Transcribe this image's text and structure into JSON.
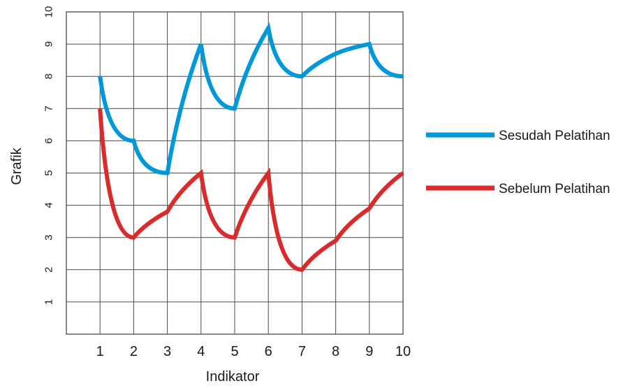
{
  "chart_data": {
    "type": "line",
    "title": "",
    "xlabel": "Indikator",
    "ylabel": "Grafik",
    "x": [
      1,
      2,
      3,
      4,
      5,
      6,
      7,
      8,
      9,
      10
    ],
    "x_ticks": [
      "1",
      "2",
      "3",
      "4",
      "5",
      "6",
      "7",
      "8",
      "9",
      "10"
    ],
    "y_ticks": [
      "1",
      "2",
      "3",
      "4",
      "5",
      "6",
      "7",
      "8",
      "9",
      "10"
    ],
    "xlim": [
      0,
      10
    ],
    "ylim": [
      0,
      10
    ],
    "grid": true,
    "legend_position": "right",
    "series": [
      {
        "name": "Sesudah Pelatihan",
        "color": "#0098d8",
        "values": [
          8,
          6,
          5,
          9,
          7,
          9.5,
          8,
          8.7,
          9,
          8
        ]
      },
      {
        "name": "Sebelum Pelatihan",
        "color": "#d92b2b",
        "values": [
          7,
          3,
          3.8,
          5,
          3,
          5,
          2,
          2.9,
          3.9,
          5
        ]
      }
    ]
  }
}
